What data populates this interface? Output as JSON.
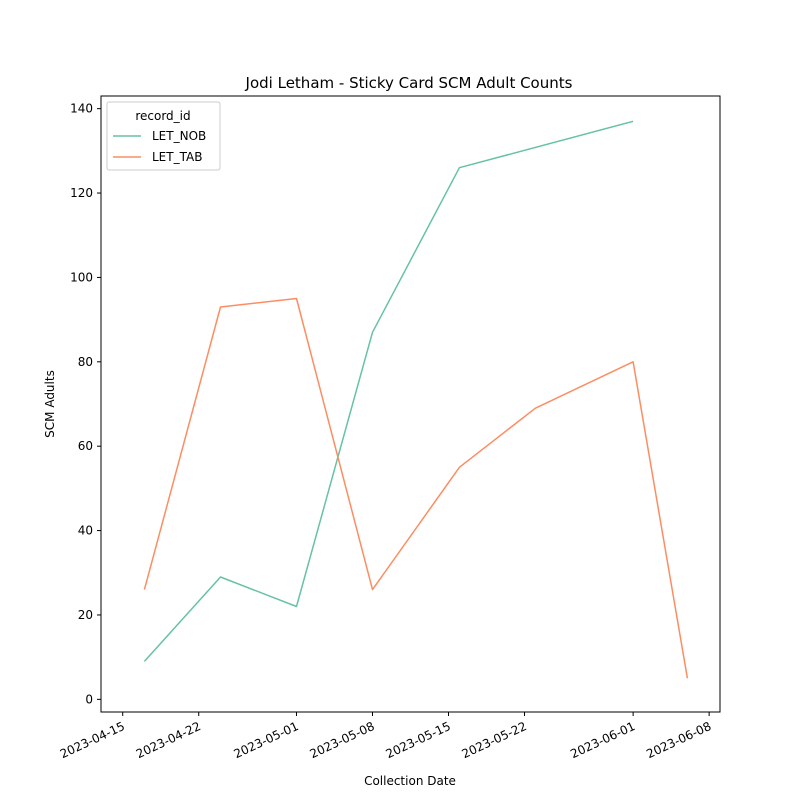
{
  "chart_data": {
    "type": "line",
    "title": "Jodi Letham - Sticky Card SCM Adult Counts",
    "xlabel": "Collection Date",
    "ylabel": "SCM Adults",
    "legend": {
      "title": "record_id",
      "placement": "top-left"
    },
    "x_tick_labels": [
      "2023-04-15",
      "2023-04-22",
      "2023-05-01",
      "2023-05-08",
      "2023-05-15",
      "2023-05-22",
      "2023-06-01",
      "2023-06-08"
    ],
    "y_ticks": [
      0,
      20,
      40,
      60,
      80,
      100,
      120,
      140
    ],
    "xlim": [
      "2023-04-13",
      "2023-06-09"
    ],
    "ylim": [
      -3,
      143
    ],
    "grid": false,
    "series": [
      {
        "name": "LET_NOB",
        "color": "#66c2a5",
        "points": [
          {
            "x": "2023-04-17",
            "y": 9
          },
          {
            "x": "2023-04-24",
            "y": 29
          },
          {
            "x": "2023-05-01",
            "y": 22
          },
          {
            "x": "2023-05-08",
            "y": 87
          },
          {
            "x": "2023-05-16",
            "y": 126
          },
          {
            "x": "2023-06-01",
            "y": 137
          }
        ]
      },
      {
        "name": "LET_TAB",
        "color": "#fc8d62",
        "points": [
          {
            "x": "2023-04-17",
            "y": 26
          },
          {
            "x": "2023-04-24",
            "y": 93
          },
          {
            "x": "2023-05-01",
            "y": 95
          },
          {
            "x": "2023-05-08",
            "y": 26
          },
          {
            "x": "2023-05-16",
            "y": 55
          },
          {
            "x": "2023-05-23",
            "y": 69
          },
          {
            "x": "2023-06-01",
            "y": 80
          },
          {
            "x": "2023-06-06",
            "y": 5
          }
        ]
      }
    ]
  }
}
